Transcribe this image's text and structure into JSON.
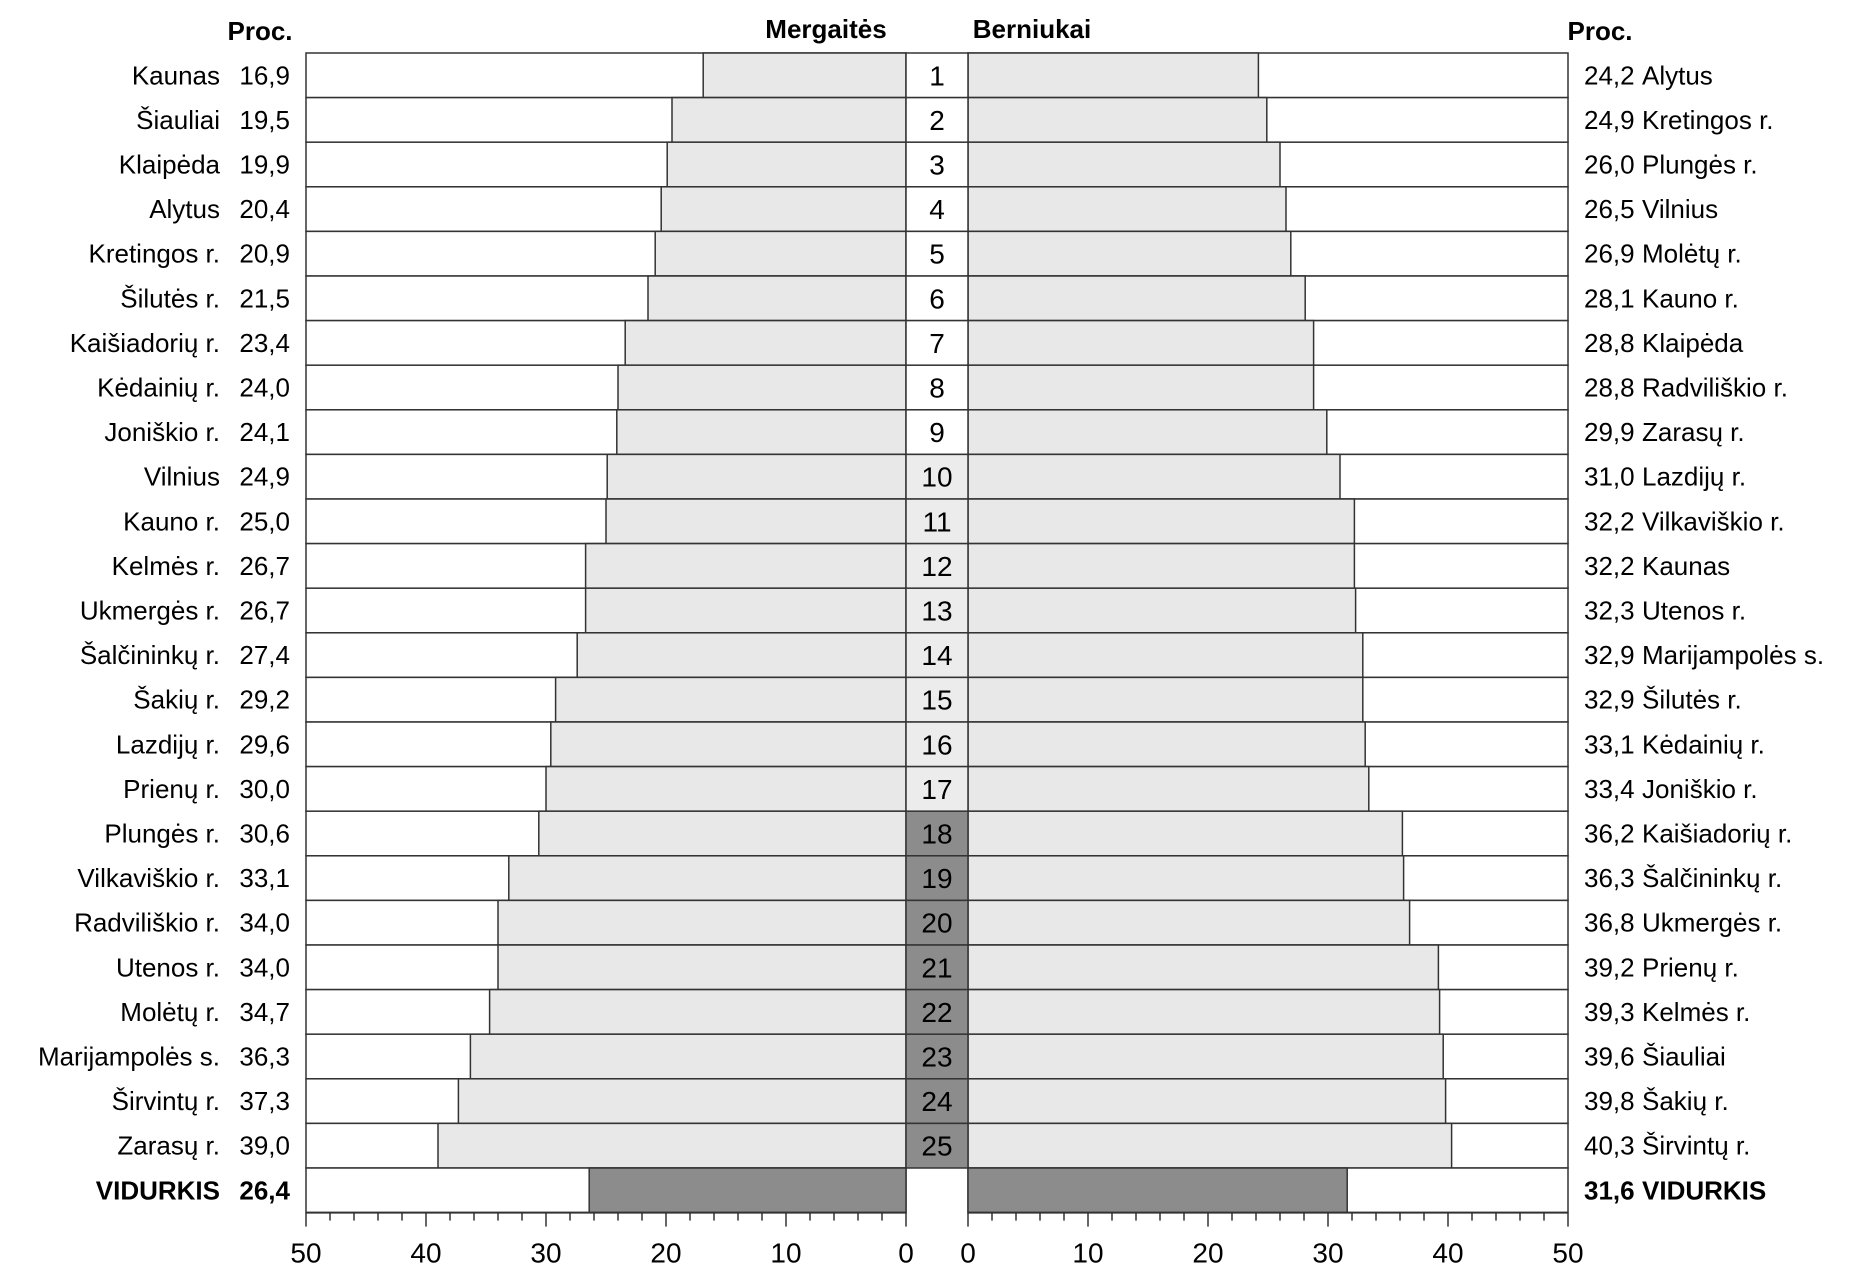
{
  "chart_data": {
    "type": "bar",
    "orientation": "horizontal-butterfly",
    "headers": {
      "left_proc": "Proc.",
      "left_series": "Mergaitės",
      "right_series": "Berniukai",
      "right_proc": "Proc."
    },
    "xlim": [
      0,
      50
    ],
    "x_ticks": [
      50,
      40,
      30,
      20,
      10,
      0
    ],
    "ranks": [
      "1",
      "2",
      "3",
      "4",
      "5",
      "6",
      "7",
      "8",
      "9",
      "10",
      "11",
      "12",
      "13",
      "14",
      "15",
      "16",
      "17",
      "18",
      "19",
      "20",
      "21",
      "22",
      "23",
      "24",
      "25"
    ],
    "series": [
      {
        "name": "Mergaitės",
        "categories": [
          "Kaunas",
          "Šiauliai",
          "Klaipėda",
          "Alytus",
          "Kretingos r.",
          "Šilutės r.",
          "Kaišiadorių r.",
          "Kėdainių r.",
          "Joniškio r.",
          "Vilnius",
          "Kauno r.",
          "Kelmės r.",
          "Ukmergės r.",
          "Šalčininkų r.",
          "Šakių r.",
          "Lazdijų r.",
          "Prienų r.",
          "Plungės r.",
          "Vilkaviškio r.",
          "Radviliškio r.",
          "Utenos r.",
          "Molėtų r.",
          "Marijampolės s.",
          "Širvintų r.",
          "Zarasų r."
        ],
        "values": [
          16.9,
          19.5,
          19.9,
          20.4,
          20.9,
          21.5,
          23.4,
          24.0,
          24.1,
          24.9,
          25.0,
          26.7,
          26.7,
          27.4,
          29.2,
          29.6,
          30.0,
          30.6,
          33.1,
          34.0,
          34.0,
          34.7,
          36.3,
          37.3,
          39.0
        ],
        "value_labels": [
          "16,9",
          "19,5",
          "19,9",
          "20,4",
          "20,9",
          "21,5",
          "23,4",
          "24,0",
          "24,1",
          "24,9",
          "25,0",
          "26,7",
          "26,7",
          "27,4",
          "29,2",
          "29,6",
          "30,0",
          "30,6",
          "33,1",
          "34,0",
          "34,0",
          "34,7",
          "36,3",
          "37,3",
          "39,0"
        ],
        "average": {
          "label": "VIDURKIS",
          "value": 26.4,
          "value_label": "26,4"
        }
      },
      {
        "name": "Berniukai",
        "categories": [
          "Alytus",
          "Kretingos r.",
          "Plungės r.",
          "Vilnius",
          "Molėtų r.",
          "Kauno r.",
          "Klaipėda",
          "Radviliškio r.",
          "Zarasų r.",
          "Lazdijų r.",
          "Vilkaviškio r.",
          "Kaunas",
          "Utenos r.",
          "Marijampolės s.",
          "Šilutės r.",
          "Kėdainių r.",
          "Joniškio r.",
          "Kaišiadorių r.",
          "Šalčininkų r.",
          "Ukmergės r.",
          "Prienų r.",
          "Kelmės r.",
          "Šiauliai",
          "Šakių r.",
          "Širvintų r."
        ],
        "values": [
          24.2,
          24.9,
          26.0,
          26.5,
          26.9,
          28.1,
          28.8,
          28.8,
          29.9,
          31.0,
          32.2,
          32.2,
          32.3,
          32.9,
          32.9,
          33.1,
          33.4,
          36.2,
          36.3,
          36.8,
          39.2,
          39.3,
          39.6,
          39.8,
          40.3
        ],
        "value_labels": [
          "24,2",
          "24,9",
          "26,0",
          "26,5",
          "26,9",
          "28,1",
          "28,8",
          "28,8",
          "29,9",
          "31,0",
          "32,2",
          "32,2",
          "32,3",
          "32,9",
          "32,9",
          "33,1",
          "33,4",
          "36,2",
          "36,3",
          "36,8",
          "39,2",
          "39,3",
          "39,6",
          "39,8",
          "40,3"
        ],
        "average": {
          "label": "VIDURKIS",
          "value": 31.6,
          "value_label": "31,6"
        }
      }
    ],
    "colors": {
      "bar": "#e8e8e8",
      "average_bar": "#8c8c8c",
      "rank_band_dark": "#8c8c8c",
      "rank_band_light": "#ececec",
      "stroke": "#333333",
      "text": "#000000"
    }
  }
}
